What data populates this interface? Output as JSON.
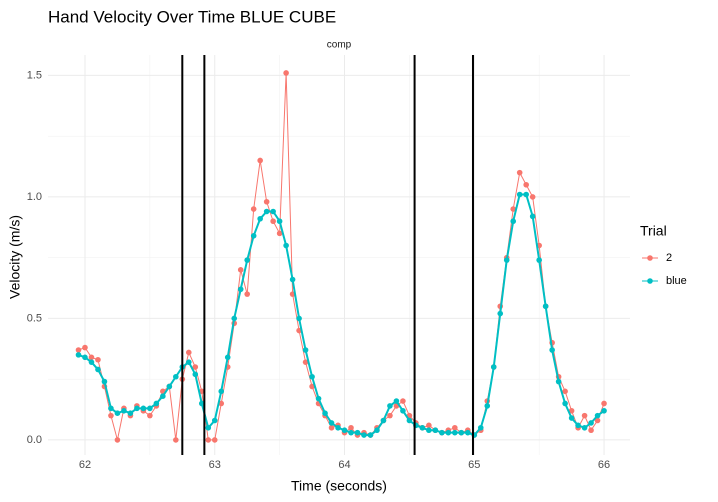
{
  "chart_data": {
    "type": "line",
    "title": "Hand Velocity Over Time BLUE CUBE",
    "facet": "comp",
    "x_label": "Time (seconds)",
    "y_label": "Velocity (m/s)",
    "legend_title": "Trial",
    "legend": "right",
    "grid": true,
    "x": [
      61.95,
      62.0,
      62.05,
      62.1,
      62.15,
      62.2,
      62.25,
      62.3,
      62.35,
      62.4,
      62.45,
      62.5,
      62.55,
      62.6,
      62.65,
      62.7,
      62.75,
      62.8,
      62.85,
      62.9,
      62.95,
      63.0,
      63.05,
      63.1,
      63.15,
      63.2,
      63.25,
      63.3,
      63.35,
      63.4,
      63.45,
      63.5,
      63.55,
      63.6,
      63.65,
      63.7,
      63.75,
      63.8,
      63.85,
      63.9,
      63.95,
      64.0,
      64.05,
      64.1,
      64.15,
      64.2,
      64.25,
      64.3,
      64.35,
      64.4,
      64.45,
      64.5,
      64.55,
      64.6,
      64.65,
      64.7,
      64.75,
      64.8,
      64.85,
      64.9,
      64.95,
      65.0,
      65.05,
      65.1,
      65.15,
      65.2,
      65.25,
      65.3,
      65.35,
      65.4,
      65.45,
      65.5,
      65.55,
      65.6,
      65.65,
      65.7,
      65.75,
      65.8,
      65.85,
      65.9,
      65.95,
      66.0
    ],
    "series": [
      {
        "name": "2",
        "color": "#F8766D",
        "values": [
          0.37,
          0.38,
          0.34,
          0.33,
          0.22,
          0.1,
          0.0,
          0.13,
          0.1,
          0.14,
          0.12,
          0.1,
          0.14,
          0.2,
          0.22,
          0.0,
          0.25,
          0.36,
          0.3,
          0.2,
          0.0,
          0.0,
          0.15,
          0.3,
          0.48,
          0.7,
          0.6,
          0.95,
          1.15,
          0.98,
          0.9,
          0.85,
          1.51,
          0.6,
          0.45,
          0.32,
          0.22,
          0.15,
          0.1,
          0.05,
          0.06,
          0.03,
          0.05,
          0.02,
          0.03,
          0.02,
          0.05,
          0.08,
          0.1,
          0.14,
          0.16,
          0.1,
          0.07,
          0.05,
          0.06,
          0.04,
          0.03,
          0.04,
          0.05,
          0.03,
          0.04,
          0.02,
          0.04,
          0.16,
          0.3,
          0.55,
          0.75,
          0.95,
          1.1,
          1.05,
          1.0,
          0.8,
          0.55,
          0.4,
          0.26,
          0.2,
          0.12,
          0.05,
          0.1,
          0.04,
          0.08,
          0.15
        ]
      },
      {
        "name": "blue",
        "color": "#00BFC4",
        "values": [
          0.35,
          0.34,
          0.32,
          0.29,
          0.24,
          0.13,
          0.11,
          0.12,
          0.11,
          0.13,
          0.13,
          0.13,
          0.15,
          0.18,
          0.22,
          0.26,
          0.3,
          0.32,
          0.27,
          0.15,
          0.05,
          0.08,
          0.2,
          0.34,
          0.5,
          0.62,
          0.74,
          0.84,
          0.91,
          0.94,
          0.94,
          0.9,
          0.8,
          0.66,
          0.5,
          0.37,
          0.26,
          0.17,
          0.11,
          0.07,
          0.05,
          0.04,
          0.03,
          0.03,
          0.02,
          0.02,
          0.04,
          0.08,
          0.14,
          0.16,
          0.12,
          0.08,
          0.06,
          0.05,
          0.04,
          0.04,
          0.03,
          0.03,
          0.03,
          0.03,
          0.03,
          0.02,
          0.05,
          0.14,
          0.3,
          0.52,
          0.74,
          0.9,
          1.01,
          1.01,
          0.92,
          0.74,
          0.55,
          0.37,
          0.24,
          0.15,
          0.09,
          0.06,
          0.05,
          0.07,
          0.1,
          0.12
        ]
      }
    ],
    "vlines": [
      62.75,
      62.92,
      64.54,
      64.99
    ],
    "xlim": [
      61.715,
      66.2
    ],
    "xticks": [
      62,
      63,
      64,
      65,
      66
    ],
    "x_minor_ticks": [
      62.5,
      63.5,
      64.5,
      65.5
    ],
    "ylim": [
      -0.062,
      1.584
    ],
    "yticks": [
      {
        "value": 0,
        "label": "0.0"
      },
      0.5,
      {
        "value": 1,
        "label": "1.0"
      },
      1.5
    ],
    "y_minor_ticks": [
      0.25,
      0.75,
      1.25
    ]
  }
}
